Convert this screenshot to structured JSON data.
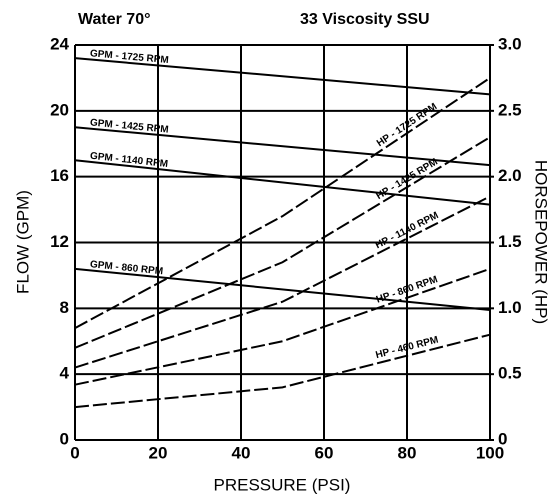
{
  "chart_data": {
    "type": "line",
    "title": "Water 70°",
    "subtitle": "33 Viscosity SSU",
    "x_label": "PRESSURE (PSI)",
    "y_label": "FLOW (GPM)",
    "y2_label": "HORSEPOWER (HP)",
    "xlim": [
      0,
      100
    ],
    "xticks": [
      0,
      20,
      40,
      60,
      80,
      100
    ],
    "ylim": [
      0,
      24
    ],
    "yticks": [
      0,
      4,
      8,
      12,
      16,
      20,
      24
    ],
    "y2lim": [
      0,
      3
    ],
    "y2ticks": [
      0,
      0.5,
      {
        "value": 1,
        "label": "1.0"
      },
      1.5,
      {
        "value": 2,
        "label": "2.0"
      },
      2.5,
      {
        "value": 3,
        "label": "3.0"
      }
    ],
    "grid": true,
    "series": [
      {
        "name": "GPM - 1725 RPM",
        "color": "#000000",
        "x": [
          0,
          100
        ],
        "values": [
          23.2,
          21.0
        ]
      },
      {
        "name": "GPM - 1425 RPM",
        "color": "#000000",
        "x": [
          0,
          100
        ],
        "values": [
          19.0,
          16.7
        ]
      },
      {
        "name": "GPM - 1140 RPM",
        "color": "#000000",
        "x": [
          0,
          100
        ],
        "values": [
          17.0,
          14.3
        ]
      },
      {
        "name": "GPM - 860 RPM",
        "color": "#000000",
        "x": [
          0,
          100
        ],
        "values": [
          10.4,
          7.9
        ]
      },
      {
        "name": "HP - 1725 RPM",
        "color": "#000000",
        "axis": "y2",
        "x": [
          0,
          50,
          100
        ],
        "values": [
          0.85,
          1.7,
          2.75
        ]
      },
      {
        "name": "HP - 1425 RPM",
        "color": "#000000",
        "axis": "y2",
        "x": [
          0,
          50,
          100
        ],
        "values": [
          0.7,
          1.35,
          2.3
        ]
      },
      {
        "name": "HP - 1140 RPM",
        "color": "#000000",
        "axis": "y2",
        "x": [
          0,
          50,
          100
        ],
        "values": [
          0.55,
          1.05,
          1.85
        ]
      },
      {
        "name": "HP - 860 RPM",
        "color": "#000000",
        "axis": "y2",
        "x": [
          0,
          50,
          100
        ],
        "values": [
          0.42,
          0.75,
          1.3
        ]
      },
      {
        "name": "HP - 460 RPM",
        "color": "#000000",
        "axis": "y2",
        "x": [
          0,
          50,
          100
        ],
        "values": [
          0.25,
          0.4,
          0.8
        ]
      }
    ]
  }
}
